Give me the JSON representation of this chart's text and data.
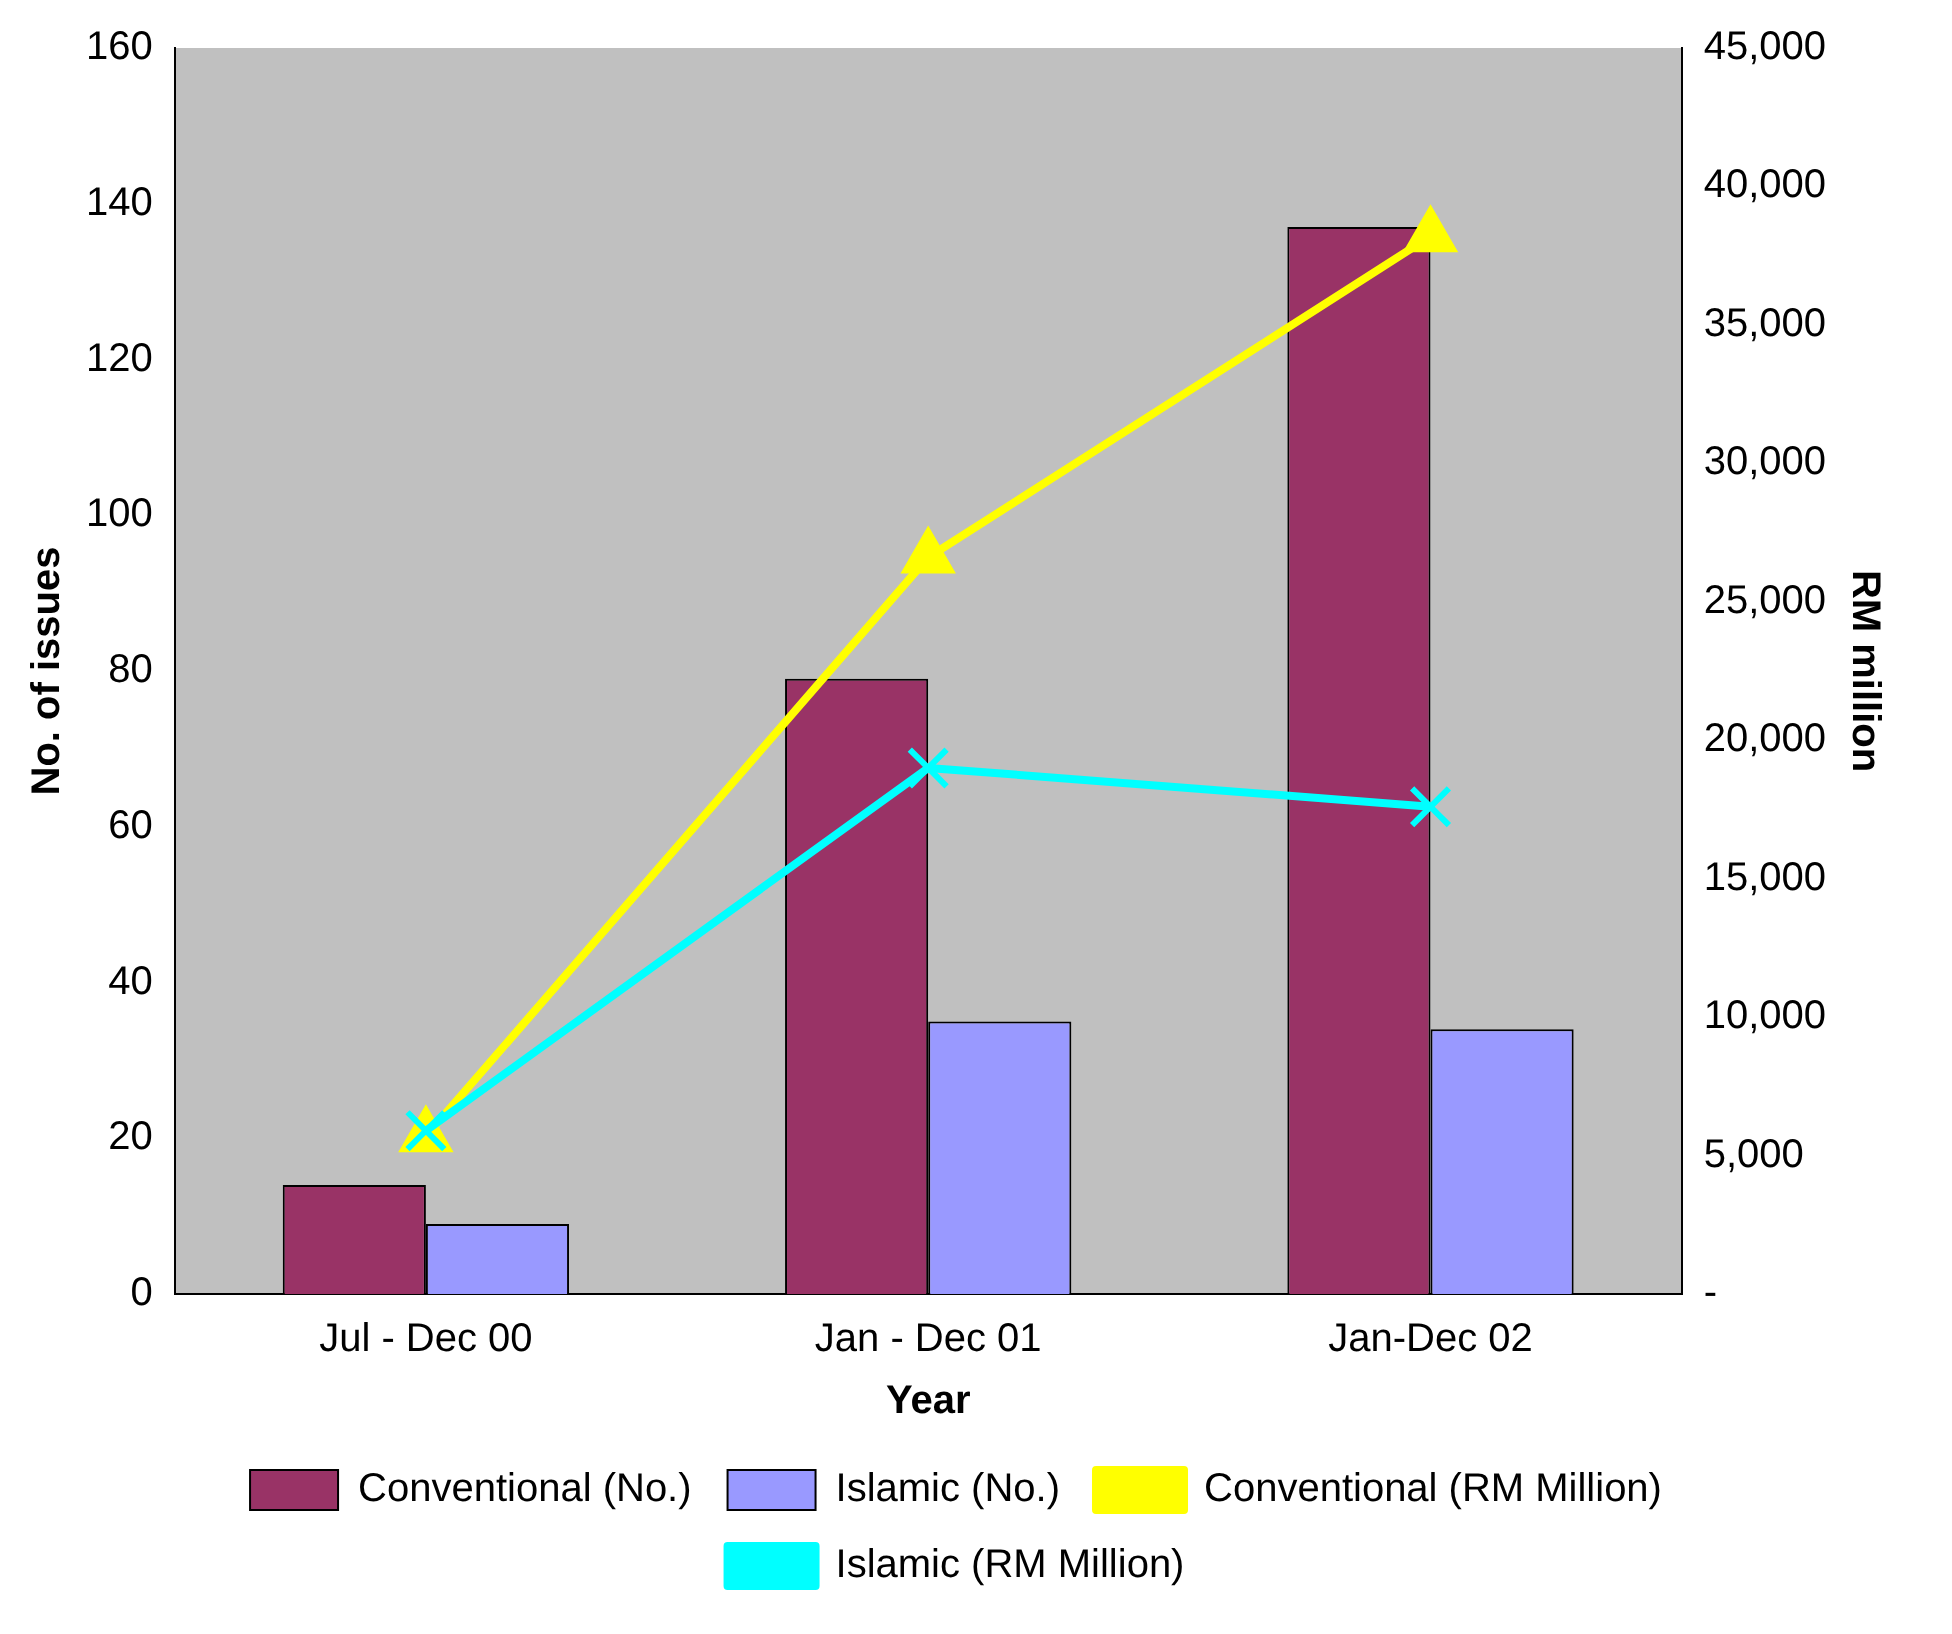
{
  "chart_data": {
    "type": "bar",
    "xlabel": "Year",
    "ylabel": "No. of issues",
    "y2label": "RM million",
    "categories": [
      "Jul - Dec 00",
      "Jan - Dec 01",
      "Jan-Dec 02"
    ],
    "series": [
      {
        "name": "Conventional (No.)",
        "color": "#993366",
        "values": [
          14,
          79,
          137
        ]
      },
      {
        "name": "Islamic (No.)",
        "color": "#9999ff",
        "values": [
          9,
          35,
          34
        ]
      },
      {
        "name": "Conventional (RM Million)",
        "type": "line",
        "axis": "y2",
        "marker": "triangle",
        "color": "#ffff00",
        "values": [
          5700,
          26600,
          38200
        ]
      },
      {
        "name": "Islamic (RM Million)",
        "type": "line",
        "axis": "y2",
        "marker": "cross",
        "color": "#00ffff",
        "values": [
          5900,
          19000,
          17600
        ]
      }
    ],
    "ylim": [
      0,
      160
    ],
    "yticks": [
      0,
      20,
      40,
      60,
      80,
      100,
      120,
      140,
      160
    ],
    "y2lim": [
      0,
      45000
    ],
    "y2ticks": [
      {
        "value": 0,
        "label": "-"
      },
      {
        "value": 5000,
        "label": "5,000"
      },
      {
        "value": 10000,
        "label": "10,000"
      },
      {
        "value": 15000,
        "label": "15,000"
      },
      {
        "value": 20000,
        "label": "20,000"
      },
      {
        "value": 25000,
        "label": "25,000"
      },
      {
        "value": 30000,
        "label": "30,000"
      },
      {
        "value": 35000,
        "label": "35,000"
      },
      {
        "value": 40000,
        "label": "40,000"
      },
      {
        "value": 45000,
        "label": "45,000"
      }
    ],
    "grid": false,
    "legend": "bottom"
  }
}
